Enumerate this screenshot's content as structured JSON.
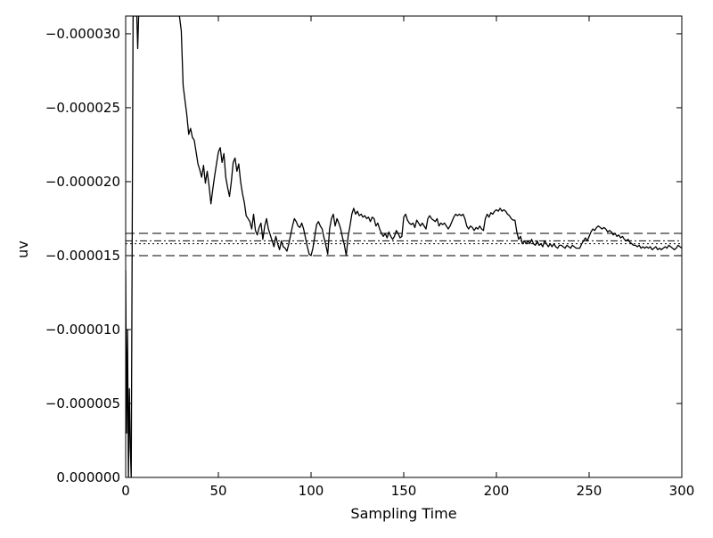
{
  "chart_data": {
    "type": "line",
    "title": "",
    "xlabel": "Sampling Time",
    "ylabel": "uv",
    "xlim": [
      0,
      300
    ],
    "ylim": [
      0,
      -3.12e-05
    ],
    "y_inverted": true,
    "grid": false,
    "x_ticks": [
      0,
      50,
      100,
      150,
      200,
      250,
      300
    ],
    "x_tick_labels": [
      "0",
      "50",
      "100",
      "150",
      "200",
      "250",
      "300"
    ],
    "y_ticks": [
      -3e-05,
      -2.5e-05,
      -2e-05,
      -1.5e-05,
      -1e-05,
      -5e-06,
      0
    ],
    "y_tick_labels": [
      "−0.000030",
      "−0.000025",
      "−0.000020",
      "−0.000015",
      "−0.000010",
      "−0.000005",
      "0.000000"
    ],
    "reference_lines": [
      {
        "style": "dashed",
        "y": -1.65e-05
      },
      {
        "style": "dashdot",
        "y": -1.6e-05
      },
      {
        "style": "dotted",
        "y": -1.58e-05
      },
      {
        "style": "dashed",
        "y": -1.5e-05
      }
    ],
    "series": [
      {
        "color": "#000000",
        "points": [
          [
            0,
            -1.4e-05
          ],
          [
            0.5,
            -3e-06
          ],
          [
            1,
            -1e-05
          ],
          [
            1.5,
            0
          ],
          [
            2,
            -6e-06
          ],
          [
            2.5,
            -2e-06
          ],
          [
            3,
            0
          ],
          [
            4,
            -3.12e-05
          ],
          [
            5,
            -3.12e-05
          ],
          [
            6,
            -3.12e-05
          ],
          [
            6.5,
            -2.9e-05
          ],
          [
            7,
            -3.12e-05
          ],
          [
            29,
            -3.12e-05
          ],
          [
            30,
            -3.02e-05
          ],
          [
            31,
            -2.65e-05
          ],
          [
            32,
            -2.55e-05
          ],
          [
            33,
            -2.45e-05
          ],
          [
            34,
            -2.32e-05
          ],
          [
            35,
            -2.36e-05
          ],
          [
            36,
            -2.3e-05
          ],
          [
            37,
            -2.28e-05
          ],
          [
            38,
            -2.2e-05
          ],
          [
            39,
            -2.12e-05
          ],
          [
            40,
            -2.08e-05
          ],
          [
            41,
            -2.03e-05
          ],
          [
            42,
            -2.11e-05
          ],
          [
            43,
            -1.99e-05
          ],
          [
            44,
            -2.07e-05
          ],
          [
            45,
            -1.97e-05
          ],
          [
            46,
            -1.85e-05
          ],
          [
            47,
            -1.95e-05
          ],
          [
            48,
            -2.04e-05
          ],
          [
            49,
            -2.12e-05
          ],
          [
            50,
            -2.2e-05
          ],
          [
            51,
            -2.23e-05
          ],
          [
            52,
            -2.13e-05
          ],
          [
            53,
            -2.19e-05
          ],
          [
            54,
            -2.03e-05
          ],
          [
            55,
            -1.96e-05
          ],
          [
            56,
            -1.9e-05
          ],
          [
            57,
            -2e-05
          ],
          [
            58,
            -2.13e-05
          ],
          [
            59,
            -2.16e-05
          ],
          [
            60,
            -2.07e-05
          ],
          [
            61,
            -2.12e-05
          ],
          [
            62,
            -2e-05
          ],
          [
            63,
            -1.92e-05
          ],
          [
            64,
            -1.86e-05
          ],
          [
            65,
            -1.77e-05
          ],
          [
            66,
            -1.75e-05
          ],
          [
            67,
            -1.73e-05
          ],
          [
            68,
            -1.68e-05
          ],
          [
            69,
            -1.78e-05
          ],
          [
            70,
            -1.67e-05
          ],
          [
            71,
            -1.64e-05
          ],
          [
            72,
            -1.69e-05
          ],
          [
            73,
            -1.72e-05
          ],
          [
            74,
            -1.61e-05
          ],
          [
            75,
            -1.7e-05
          ],
          [
            76,
            -1.75e-05
          ],
          [
            77,
            -1.68e-05
          ],
          [
            78,
            -1.64e-05
          ],
          [
            79,
            -1.6e-05
          ],
          [
            80,
            -1.56e-05
          ],
          [
            81,
            -1.63e-05
          ],
          [
            82,
            -1.58e-05
          ],
          [
            83,
            -1.54e-05
          ],
          [
            84,
            -1.6e-05
          ],
          [
            85,
            -1.56e-05
          ],
          [
            86,
            -1.55e-05
          ],
          [
            87,
            -1.53e-05
          ],
          [
            88,
            -1.58e-05
          ],
          [
            89,
            -1.64e-05
          ],
          [
            90,
            -1.7e-05
          ],
          [
            91,
            -1.75e-05
          ],
          [
            92,
            -1.73e-05
          ],
          [
            93,
            -1.7e-05
          ],
          [
            94,
            -1.69e-05
          ],
          [
            95,
            -1.72e-05
          ],
          [
            96,
            -1.68e-05
          ],
          [
            97,
            -1.62e-05
          ],
          [
            98,
            -1.56e-05
          ],
          [
            99,
            -1.51e-05
          ],
          [
            100,
            -1.5e-05
          ],
          [
            101,
            -1.55e-05
          ],
          [
            102,
            -1.63e-05
          ],
          [
            103,
            -1.71e-05
          ],
          [
            104,
            -1.73e-05
          ],
          [
            105,
            -1.7e-05
          ],
          [
            106,
            -1.68e-05
          ],
          [
            107,
            -1.62e-05
          ],
          [
            108,
            -1.57e-05
          ],
          [
            109,
            -1.51e-05
          ],
          [
            110,
            -1.68e-05
          ],
          [
            111,
            -1.75e-05
          ],
          [
            112,
            -1.78e-05
          ],
          [
            113,
            -1.7e-05
          ],
          [
            114,
            -1.75e-05
          ],
          [
            115,
            -1.72e-05
          ],
          [
            116,
            -1.68e-05
          ],
          [
            117,
            -1.62e-05
          ],
          [
            118,
            -1.57e-05
          ],
          [
            119,
            -1.5e-05
          ],
          [
            120,
            -1.63e-05
          ],
          [
            121,
            -1.7e-05
          ],
          [
            122,
            -1.78e-05
          ],
          [
            123,
            -1.82e-05
          ],
          [
            124,
            -1.78e-05
          ],
          [
            125,
            -1.8e-05
          ],
          [
            126,
            -1.77e-05
          ],
          [
            127,
            -1.78e-05
          ],
          [
            128,
            -1.76e-05
          ],
          [
            129,
            -1.77e-05
          ],
          [
            130,
            -1.75e-05
          ],
          [
            131,
            -1.76e-05
          ],
          [
            132,
            -1.73e-05
          ],
          [
            133,
            -1.76e-05
          ],
          [
            134,
            -1.75e-05
          ],
          [
            135,
            -1.7e-05
          ],
          [
            136,
            -1.72e-05
          ],
          [
            137,
            -1.68e-05
          ],
          [
            138,
            -1.65e-05
          ],
          [
            139,
            -1.63e-05
          ],
          [
            140,
            -1.65e-05
          ],
          [
            141,
            -1.62e-05
          ],
          [
            142,
            -1.66e-05
          ],
          [
            143,
            -1.63e-05
          ],
          [
            144,
            -1.61e-05
          ],
          [
            145,
            -1.63e-05
          ],
          [
            146,
            -1.67e-05
          ],
          [
            147,
            -1.65e-05
          ],
          [
            148,
            -1.62e-05
          ],
          [
            149,
            -1.63e-05
          ],
          [
            150,
            -1.76e-05
          ],
          [
            151,
            -1.78e-05
          ],
          [
            152,
            -1.74e-05
          ],
          [
            153,
            -1.72e-05
          ],
          [
            154,
            -1.71e-05
          ],
          [
            155,
            -1.72e-05
          ],
          [
            156,
            -1.69e-05
          ],
          [
            157,
            -1.74e-05
          ],
          [
            158,
            -1.72e-05
          ],
          [
            159,
            -1.7e-05
          ],
          [
            160,
            -1.72e-05
          ],
          [
            161,
            -1.7e-05
          ],
          [
            162,
            -1.68e-05
          ],
          [
            163,
            -1.75e-05
          ],
          [
            164,
            -1.77e-05
          ],
          [
            165,
            -1.75e-05
          ],
          [
            166,
            -1.74e-05
          ],
          [
            167,
            -1.73e-05
          ],
          [
            168,
            -1.75e-05
          ],
          [
            169,
            -1.7e-05
          ],
          [
            170,
            -1.72e-05
          ],
          [
            171,
            -1.71e-05
          ],
          [
            172,
            -1.72e-05
          ],
          [
            173,
            -1.7e-05
          ],
          [
            174,
            -1.68e-05
          ],
          [
            175,
            -1.7e-05
          ],
          [
            176,
            -1.73e-05
          ],
          [
            177,
            -1.76e-05
          ],
          [
            178,
            -1.78e-05
          ],
          [
            179,
            -1.77e-05
          ],
          [
            180,
            -1.78e-05
          ],
          [
            181,
            -1.77e-05
          ],
          [
            182,
            -1.78e-05
          ],
          [
            183,
            -1.75e-05
          ],
          [
            184,
            -1.7e-05
          ],
          [
            185,
            -1.68e-05
          ],
          [
            186,
            -1.7e-05
          ],
          [
            187,
            -1.69e-05
          ],
          [
            188,
            -1.67e-05
          ],
          [
            189,
            -1.69e-05
          ],
          [
            190,
            -1.68e-05
          ],
          [
            191,
            -1.7e-05
          ],
          [
            192,
            -1.68e-05
          ],
          [
            193,
            -1.67e-05
          ],
          [
            194,
            -1.75e-05
          ],
          [
            195,
            -1.78e-05
          ],
          [
            196,
            -1.76e-05
          ],
          [
            197,
            -1.79e-05
          ],
          [
            198,
            -1.78e-05
          ],
          [
            199,
            -1.8e-05
          ],
          [
            200,
            -1.81e-05
          ],
          [
            201,
            -1.8e-05
          ],
          [
            202,
            -1.82e-05
          ],
          [
            203,
            -1.8e-05
          ],
          [
            204,
            -1.81e-05
          ],
          [
            205,
            -1.8e-05
          ],
          [
            206,
            -1.78e-05
          ],
          [
            207,
            -1.77e-05
          ],
          [
            208,
            -1.75e-05
          ],
          [
            209,
            -1.74e-05
          ],
          [
            210,
            -1.74e-05
          ],
          [
            211,
            -1.66e-05
          ],
          [
            212,
            -1.61e-05
          ],
          [
            213,
            -1.63e-05
          ],
          [
            214,
            -1.58e-05
          ],
          [
            215,
            -1.6e-05
          ],
          [
            216,
            -1.58e-05
          ],
          [
            217,
            -1.6e-05
          ],
          [
            218,
            -1.58e-05
          ],
          [
            219,
            -1.61e-05
          ],
          [
            220,
            -1.58e-05
          ],
          [
            221,
            -1.57e-05
          ],
          [
            222,
            -1.6e-05
          ],
          [
            223,
            -1.57e-05
          ],
          [
            224,
            -1.58e-05
          ],
          [
            225,
            -1.56e-05
          ],
          [
            226,
            -1.6e-05
          ],
          [
            227,
            -1.58e-05
          ],
          [
            228,
            -1.56e-05
          ],
          [
            229,
            -1.58e-05
          ],
          [
            230,
            -1.56e-05
          ],
          [
            231,
            -1.58e-05
          ],
          [
            232,
            -1.56e-05
          ],
          [
            233,
            -1.55e-05
          ],
          [
            234,
            -1.57e-05
          ],
          [
            235,
            -1.57e-05
          ],
          [
            236,
            -1.56e-05
          ],
          [
            237,
            -1.55e-05
          ],
          [
            238,
            -1.57e-05
          ],
          [
            239,
            -1.56e-05
          ],
          [
            240,
            -1.55e-05
          ],
          [
            241,
            -1.57e-05
          ],
          [
            242,
            -1.56e-05
          ],
          [
            243,
            -1.55e-05
          ],
          [
            244,
            -1.55e-05
          ],
          [
            245,
            -1.55e-05
          ],
          [
            246,
            -1.58e-05
          ],
          [
            247,
            -1.6e-05
          ],
          [
            248,
            -1.62e-05
          ],
          [
            249,
            -1.6e-05
          ],
          [
            250,
            -1.63e-05
          ],
          [
            251,
            -1.66e-05
          ],
          [
            252,
            -1.68e-05
          ],
          [
            253,
            -1.67e-05
          ],
          [
            254,
            -1.69e-05
          ],
          [
            255,
            -1.7e-05
          ],
          [
            256,
            -1.69e-05
          ],
          [
            257,
            -1.68e-05
          ],
          [
            258,
            -1.69e-05
          ],
          [
            259,
            -1.68e-05
          ],
          [
            260,
            -1.66e-05
          ],
          [
            261,
            -1.67e-05
          ],
          [
            262,
            -1.66e-05
          ],
          [
            263,
            -1.64e-05
          ],
          [
            264,
            -1.65e-05
          ],
          [
            265,
            -1.63e-05
          ],
          [
            266,
            -1.64e-05
          ],
          [
            267,
            -1.62e-05
          ],
          [
            268,
            -1.63e-05
          ],
          [
            269,
            -1.61e-05
          ],
          [
            270,
            -1.6e-05
          ],
          [
            271,
            -1.61e-05
          ],
          [
            272,
            -1.59e-05
          ],
          [
            273,
            -1.58e-05
          ],
          [
            274,
            -1.57e-05
          ],
          [
            275,
            -1.57e-05
          ],
          [
            276,
            -1.56e-05
          ],
          [
            277,
            -1.57e-05
          ],
          [
            278,
            -1.55e-05
          ],
          [
            279,
            -1.56e-05
          ],
          [
            280,
            -1.55e-05
          ],
          [
            281,
            -1.56e-05
          ],
          [
            282,
            -1.55e-05
          ],
          [
            283,
            -1.56e-05
          ],
          [
            284,
            -1.54e-05
          ],
          [
            285,
            -1.55e-05
          ],
          [
            286,
            -1.56e-05
          ],
          [
            287,
            -1.54e-05
          ],
          [
            288,
            -1.55e-05
          ],
          [
            289,
            -1.54e-05
          ],
          [
            290,
            -1.55e-05
          ],
          [
            291,
            -1.56e-05
          ],
          [
            292,
            -1.55e-05
          ],
          [
            293,
            -1.57e-05
          ],
          [
            294,
            -1.56e-05
          ],
          [
            295,
            -1.55e-05
          ],
          [
            296,
            -1.54e-05
          ],
          [
            297,
            -1.55e-05
          ],
          [
            298,
            -1.57e-05
          ],
          [
            299,
            -1.56e-05
          ],
          [
            300,
            -1.55e-05
          ]
        ]
      }
    ]
  }
}
